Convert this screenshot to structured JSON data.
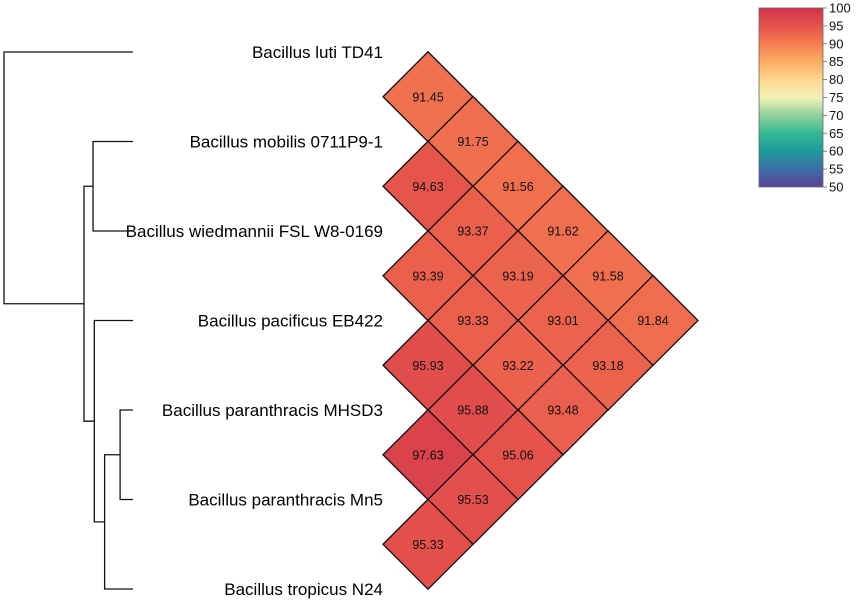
{
  "chart_data": {
    "type": "heatmap",
    "taxa": [
      "Bacillus luti  TD41",
      "Bacillus mobilis 0711P9-1",
      "Bacillus wiedmannii FSL W8-0169",
      "Bacillus pacificus EB422",
      "Bacillus paranthracis MHSD3",
      "Bacillus paranthracis Mn5",
      "Bacillus tropicus N24"
    ],
    "cells": [
      {
        "row": 0,
        "col": 1,
        "value": 91.45
      },
      {
        "row": 0,
        "col": 2,
        "value": 91.75
      },
      {
        "row": 0,
        "col": 3,
        "value": 91.56
      },
      {
        "row": 0,
        "col": 4,
        "value": 91.62
      },
      {
        "row": 0,
        "col": 5,
        "value": 91.58
      },
      {
        "row": 0,
        "col": 6,
        "value": 91.84
      },
      {
        "row": 1,
        "col": 2,
        "value": 94.63
      },
      {
        "row": 1,
        "col": 3,
        "value": 93.37
      },
      {
        "row": 1,
        "col": 4,
        "value": 93.19
      },
      {
        "row": 1,
        "col": 5,
        "value": 93.01
      },
      {
        "row": 1,
        "col": 6,
        "value": 93.18
      },
      {
        "row": 2,
        "col": 3,
        "value": 93.39
      },
      {
        "row": 2,
        "col": 4,
        "value": 93.33
      },
      {
        "row": 2,
        "col": 5,
        "value": 93.22
      },
      {
        "row": 2,
        "col": 6,
        "value": 93.48
      },
      {
        "row": 3,
        "col": 4,
        "value": 95.93
      },
      {
        "row": 3,
        "col": 5,
        "value": 95.88
      },
      {
        "row": 3,
        "col": 6,
        "value": 95.06
      },
      {
        "row": 4,
        "col": 5,
        "value": 97.63
      },
      {
        "row": 4,
        "col": 6,
        "value": 95.53
      },
      {
        "row": 5,
        "col": 6,
        "value": 95.33
      }
    ],
    "colorbar": {
      "min": 50,
      "max": 100,
      "ticks": [
        100,
        95,
        90,
        85,
        80,
        75,
        70,
        65,
        60,
        55,
        50
      ],
      "stops": [
        {
          "value": 50,
          "color": "#5b3f95"
        },
        {
          "value": 55,
          "color": "#3c6fa8"
        },
        {
          "value": 60,
          "color": "#1f9a9a"
        },
        {
          "value": 65,
          "color": "#35b892"
        },
        {
          "value": 70,
          "color": "#8fd19a"
        },
        {
          "value": 75,
          "color": "#f4f2b7"
        },
        {
          "value": 80,
          "color": "#fcd78c"
        },
        {
          "value": 85,
          "color": "#fbac63"
        },
        {
          "value": 90,
          "color": "#f57d4f"
        },
        {
          "value": 95,
          "color": "#e5524c"
        },
        {
          "value": 100,
          "color": "#d0334c"
        }
      ]
    },
    "dendrogram": {
      "merges": [
        {
          "a": 4,
          "b": 5,
          "height": 0.1
        },
        {
          "a": "m0",
          "b": 6,
          "height": 0.22
        },
        {
          "a": 3,
          "b": "m1",
          "height": 0.3
        },
        {
          "a": 1,
          "b": 2,
          "height": 0.31
        },
        {
          "a": "m3",
          "b": "m2",
          "height": 0.38
        },
        {
          "a": 0,
          "b": "m4",
          "height": 1.0
        }
      ]
    }
  }
}
